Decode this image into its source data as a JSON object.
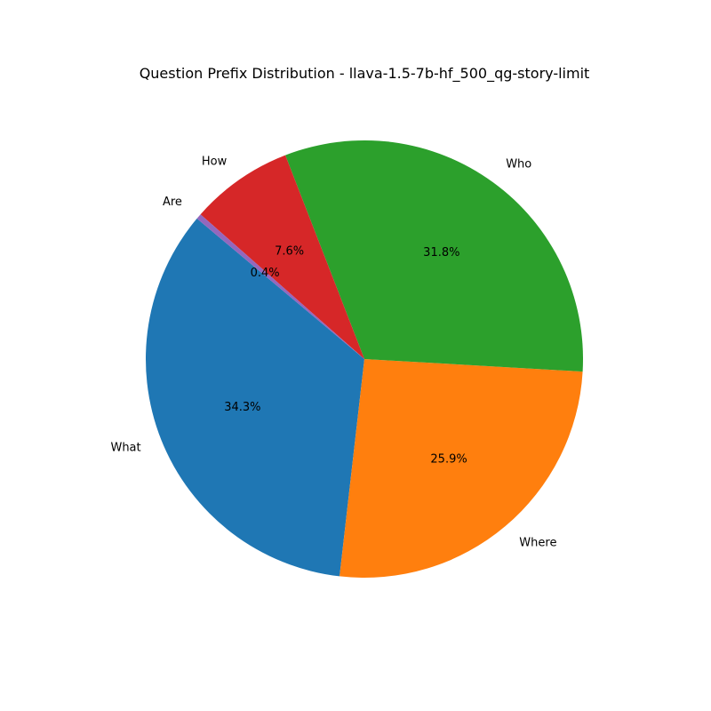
{
  "chart_data": {
    "type": "pie",
    "title": "Question Prefix Distribution - llava-1.5-7b-hf_500_qg-story-limit",
    "start_angle_deg": 140,
    "direction": "counterclockwise",
    "slices": [
      {
        "label": "What",
        "value": 34.3,
        "pct_label": "34.3%",
        "color": "#1f77b4"
      },
      {
        "label": "Where",
        "value": 25.9,
        "pct_label": "25.9%",
        "color": "#ff7f0e"
      },
      {
        "label": "Who",
        "value": 31.8,
        "pct_label": "31.8%",
        "color": "#2ca02c"
      },
      {
        "label": "How",
        "value": 7.6,
        "pct_label": "7.6%",
        "color": "#d62728"
      },
      {
        "label": "Are",
        "value": 0.4,
        "pct_label": "0.4%",
        "color": "#9467bd"
      }
    ]
  }
}
